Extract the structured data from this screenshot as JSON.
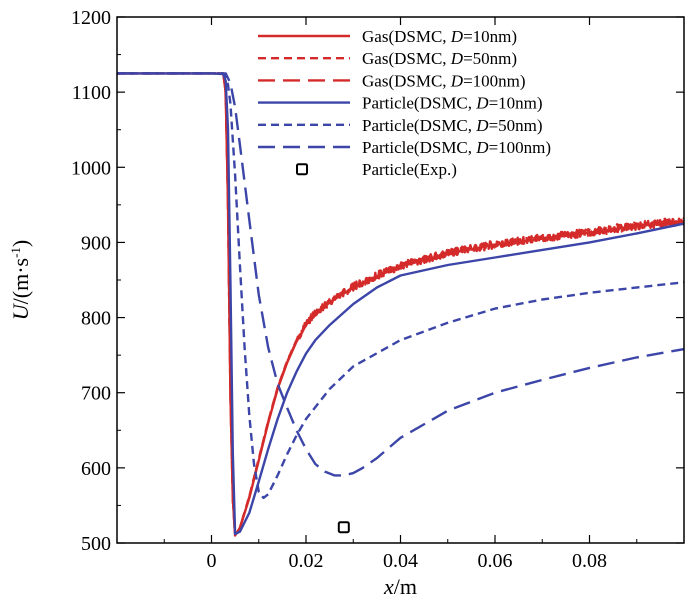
{
  "chart_data": {
    "type": "line",
    "title": "",
    "xlabel": {
      "var": "x",
      "unit": "/m"
    },
    "ylabel": {
      "var": "U",
      "unit": "/(m·s",
      "sup": "-1",
      "close": ")"
    },
    "xlim": [
      -0.02,
      0.1
    ],
    "ylim": [
      500,
      1200
    ],
    "xticks": [
      0,
      0.02,
      0.04,
      0.06,
      0.08
    ],
    "xtick_labels": [
      "0",
      "0.02",
      "0.04",
      "0.06",
      "0.08"
    ],
    "yticks": [
      500,
      600,
      700,
      800,
      900,
      1000,
      1100,
      1200
    ],
    "ytick_labels": [
      "500",
      "600",
      "700",
      "800",
      "900",
      "1000",
      "1100",
      "1200"
    ],
    "grid": false,
    "legend_position": "top-right",
    "series": [
      {
        "name": "Gas(DSMC, D=10nm)",
        "label_parts": [
          "Gas(DSMC, ",
          "D",
          "=10nm)"
        ],
        "color": "#d42a2a",
        "dash": "solid",
        "noise": 0,
        "x": [
          -0.02,
          0.0,
          0.0025,
          0.003,
          0.0035,
          0.004,
          0.0045,
          0.005,
          0.006,
          0.008,
          0.01,
          0.012,
          0.014,
          0.016,
          0.018,
          0.02,
          0.022,
          0.025,
          0.03,
          0.035,
          0.04,
          0.05,
          0.06,
          0.07,
          0.08,
          0.09,
          0.1
        ],
        "y": [
          1125,
          1125,
          1125,
          1100,
          950,
          700,
          560,
          510,
          520,
          560,
          610,
          660,
          705,
          740,
          768,
          790,
          805,
          820,
          840,
          855,
          868,
          885,
          897,
          905,
          913,
          922,
          928
        ]
      },
      {
        "name": "Gas(DSMC, D=50nm)",
        "label_parts": [
          "Gas(DSMC, ",
          "D",
          "=50nm)"
        ],
        "color": "#d42a2a",
        "dash": "short",
        "noise": 5,
        "x": [
          -0.02,
          0.0,
          0.0025,
          0.003,
          0.0035,
          0.004,
          0.0045,
          0.005,
          0.006,
          0.008,
          0.01,
          0.012,
          0.014,
          0.016,
          0.018,
          0.02,
          0.022,
          0.025,
          0.03,
          0.035,
          0.04,
          0.05,
          0.06,
          0.07,
          0.08,
          0.09,
          0.1
        ],
        "y": [
          1125,
          1125,
          1125,
          1100,
          950,
          700,
          560,
          510,
          520,
          562,
          612,
          662,
          707,
          742,
          770,
          792,
          806,
          821,
          841,
          856,
          869,
          886,
          898,
          906,
          914,
          923,
          929
        ]
      },
      {
        "name": "Gas(DSMC, D=100nm)",
        "label_parts": [
          "Gas(DSMC, ",
          "D",
          "=100nm)"
        ],
        "color": "#d42a2a",
        "dash": "long",
        "noise": 5,
        "x": [
          -0.02,
          0.0,
          0.0025,
          0.003,
          0.0035,
          0.004,
          0.0045,
          0.005,
          0.006,
          0.008,
          0.01,
          0.012,
          0.014,
          0.016,
          0.018,
          0.02,
          0.022,
          0.025,
          0.03,
          0.035,
          0.04,
          0.05,
          0.06,
          0.07,
          0.08,
          0.09,
          0.1
        ],
        "y": [
          1125,
          1125,
          1125,
          1100,
          950,
          700,
          560,
          510,
          520,
          561,
          611,
          661,
          706,
          741,
          769,
          791,
          806,
          821,
          841,
          856,
          869,
          886,
          897,
          906,
          913,
          922,
          928
        ]
      },
      {
        "name": "Particle(DSMC, D=10nm)",
        "label_parts": [
          "Particle(DSMC, ",
          "D",
          "=10nm)"
        ],
        "color": "#3c45a8",
        "dash": "solid",
        "noise": 0,
        "x": [
          -0.02,
          0.0,
          0.0025,
          0.003,
          0.0035,
          0.004,
          0.0045,
          0.005,
          0.006,
          0.008,
          0.01,
          0.012,
          0.014,
          0.016,
          0.018,
          0.02,
          0.022,
          0.025,
          0.03,
          0.035,
          0.04,
          0.05,
          0.06,
          0.07,
          0.08,
          0.09,
          0.1
        ],
        "y": [
          1125,
          1125,
          1124,
          1115,
          1050,
          850,
          620,
          512,
          515,
          540,
          582,
          625,
          665,
          700,
          728,
          752,
          770,
          790,
          818,
          840,
          856,
          870,
          880,
          890,
          900,
          912,
          925
        ]
      },
      {
        "name": "Particle(DSMC, D=50nm)",
        "label_parts": [
          "Particle(DSMC, ",
          "D",
          "=50nm)"
        ],
        "color": "#3c45a8",
        "dash": "short",
        "noise": 0,
        "x": [
          -0.02,
          0.0,
          0.0025,
          0.003,
          0.0035,
          0.004,
          0.005,
          0.006,
          0.007,
          0.008,
          0.009,
          0.01,
          0.011,
          0.012,
          0.014,
          0.016,
          0.018,
          0.02,
          0.025,
          0.03,
          0.04,
          0.05,
          0.06,
          0.07,
          0.08,
          0.09,
          0.1
        ],
        "y": [
          1125,
          1125,
          1125,
          1122,
          1110,
          1085,
          990,
          870,
          760,
          670,
          605,
          568,
          560,
          565,
          590,
          618,
          643,
          665,
          705,
          735,
          770,
          793,
          812,
          824,
          833,
          840,
          847
        ]
      },
      {
        "name": "Particle(DSMC, D=100nm)",
        "label_parts": [
          "Particle(DSMC, ",
          "D",
          "=100nm)"
        ],
        "color": "#3c45a8",
        "dash": "long",
        "noise": 0,
        "x": [
          -0.02,
          0.0,
          0.003,
          0.004,
          0.005,
          0.006,
          0.008,
          0.01,
          0.012,
          0.014,
          0.016,
          0.018,
          0.02,
          0.022,
          0.024,
          0.026,
          0.028,
          0.03,
          0.032,
          0.035,
          0.04,
          0.05,
          0.06,
          0.07,
          0.08,
          0.09,
          0.1
        ],
        "y": [
          1125,
          1125,
          1125,
          1112,
          1080,
          1030,
          930,
          830,
          760,
          712,
          680,
          650,
          625,
          605,
          595,
          590,
          590,
          593,
          600,
          613,
          640,
          676,
          700,
          717,
          733,
          747,
          758
        ]
      },
      {
        "name": "Particle(Exp.)",
        "label_parts": [
          "Particle(Exp.)"
        ],
        "color": "#000000",
        "marker": "square",
        "x": [
          0.028
        ],
        "y": [
          521
        ]
      }
    ]
  }
}
